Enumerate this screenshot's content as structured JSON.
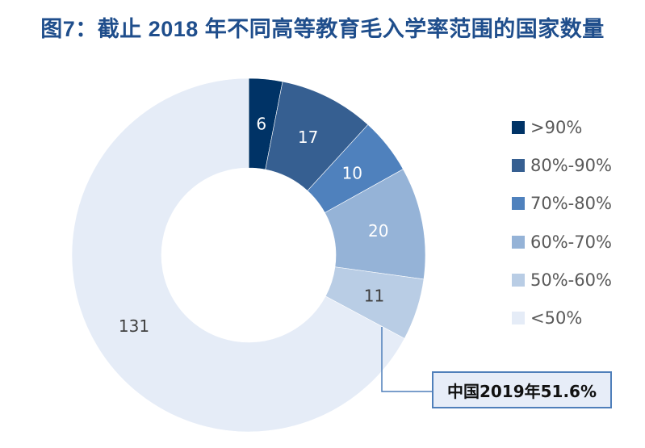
{
  "title": "图7：截止 2018 年不同高等教育毛入学率范围的国家数量",
  "chart_data": {
    "type": "pie",
    "subtype": "donut",
    "title": "图7：截止 2018 年不同高等教育毛入学率范围的国家数量",
    "categories": [
      ">90%",
      "80%-90%",
      "70%-80%",
      "60%-70%",
      "50%-60%",
      "<50%"
    ],
    "values": [
      6,
      17,
      10,
      20,
      11,
      131
    ],
    "colors": [
      "#003366",
      "#365f91",
      "#4f81bd",
      "#95b3d7",
      "#b9cde5",
      "#e5ecf7"
    ],
    "label_colors": [
      "#ffffff",
      "#ffffff",
      "#ffffff",
      "#ffffff",
      "#404040",
      "#404040"
    ],
    "legend_position": "right",
    "annotation": "中国2019年51.6%"
  },
  "legend": {
    "items": [
      {
        "label": ">90%",
        "color": "#003366"
      },
      {
        "label": "80%-90%",
        "color": "#365f91"
      },
      {
        "label": "70%-80%",
        "color": "#4f81bd"
      },
      {
        "label": "60%-70%",
        "color": "#95b3d7"
      },
      {
        "label": "50%-60%",
        "color": "#b9cde5"
      },
      {
        "label": "<50%",
        "color": "#e5ecf7"
      }
    ]
  },
  "callout": {
    "text": "中国2019年51.6%"
  }
}
